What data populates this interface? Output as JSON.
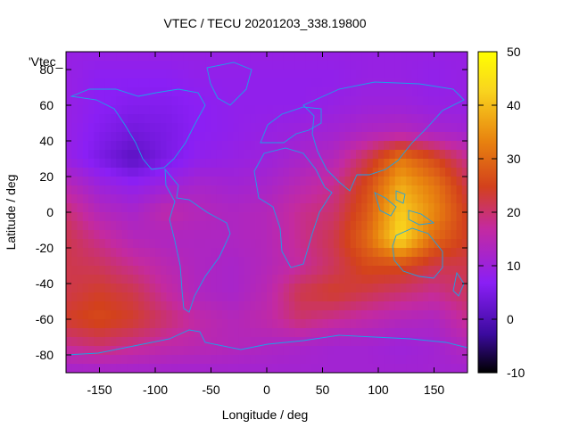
{
  "chart_data": {
    "type": "heatmap",
    "title": "VTEC / TECU 20201203_338.19800",
    "xlabel": "Longitude / deg",
    "ylabel": "Latitude / deg",
    "xlim": [
      -180,
      180
    ],
    "ylim": [
      -90,
      90
    ],
    "xticks": [
      -150,
      -100,
      -50,
      0,
      50,
      100,
      150
    ],
    "yticks": [
      -80,
      -60,
      -40,
      -20,
      0,
      20,
      40,
      60,
      80
    ],
    "colorbar": {
      "min": -10,
      "max": 50,
      "ticks": [
        -10,
        0,
        10,
        20,
        30,
        40,
        50
      ],
      "stops": [
        "#000000",
        "#3b0a9e",
        "#8a1ff5",
        "#c42aa0",
        "#d3411c",
        "#e8820f",
        "#f9d51e",
        "#ffff00"
      ]
    },
    "legend": {
      "text": "'Vtec_",
      "placement": "top-left"
    },
    "lat_samples": [
      90,
      75,
      60,
      45,
      30,
      15,
      0,
      -15,
      -30,
      -45,
      -60,
      -75,
      -90
    ],
    "lon_samples": [
      -180,
      -150,
      -120,
      -90,
      -60,
      -30,
      0,
      30,
      60,
      90,
      120,
      150,
      180
    ],
    "values": [
      [
        9,
        9,
        9,
        9,
        9,
        9,
        9,
        9,
        9,
        9,
        9,
        9,
        9
      ],
      [
        9,
        7,
        7,
        7,
        8,
        8,
        8,
        8,
        8,
        9,
        9,
        8,
        9
      ],
      [
        9,
        7,
        6,
        6,
        7,
        8,
        8,
        8,
        9,
        10,
        10,
        9,
        9
      ],
      [
        9,
        6,
        4,
        5,
        7,
        8,
        9,
        10,
        11,
        13,
        14,
        12,
        11
      ],
      [
        9,
        5,
        1,
        5,
        8,
        9,
        10,
        12,
        14,
        22,
        32,
        26,
        18
      ],
      [
        15,
        10,
        8,
        10,
        12,
        11,
        12,
        15,
        18,
        26,
        38,
        32,
        22
      ],
      [
        20,
        14,
        12,
        16,
        14,
        13,
        14,
        18,
        20,
        28,
        42,
        34,
        24
      ],
      [
        22,
        18,
        14,
        13,
        13,
        13,
        14,
        18,
        22,
        30,
        44,
        30,
        24
      ],
      [
        22,
        21,
        18,
        15,
        13,
        12,
        14,
        17,
        21,
        26,
        26,
        22,
        22
      ],
      [
        22,
        24,
        22,
        17,
        13,
        12,
        15,
        22,
        24,
        22,
        20,
        18,
        21
      ],
      [
        24,
        26,
        24,
        20,
        16,
        14,
        16,
        20,
        18,
        16,
        14,
        13,
        18
      ],
      [
        18,
        20,
        18,
        16,
        15,
        14,
        13,
        12,
        11,
        11,
        10,
        11,
        14
      ],
      [
        11,
        11,
        11,
        11,
        11,
        11,
        11,
        11,
        11,
        11,
        11,
        11,
        11
      ]
    ]
  }
}
